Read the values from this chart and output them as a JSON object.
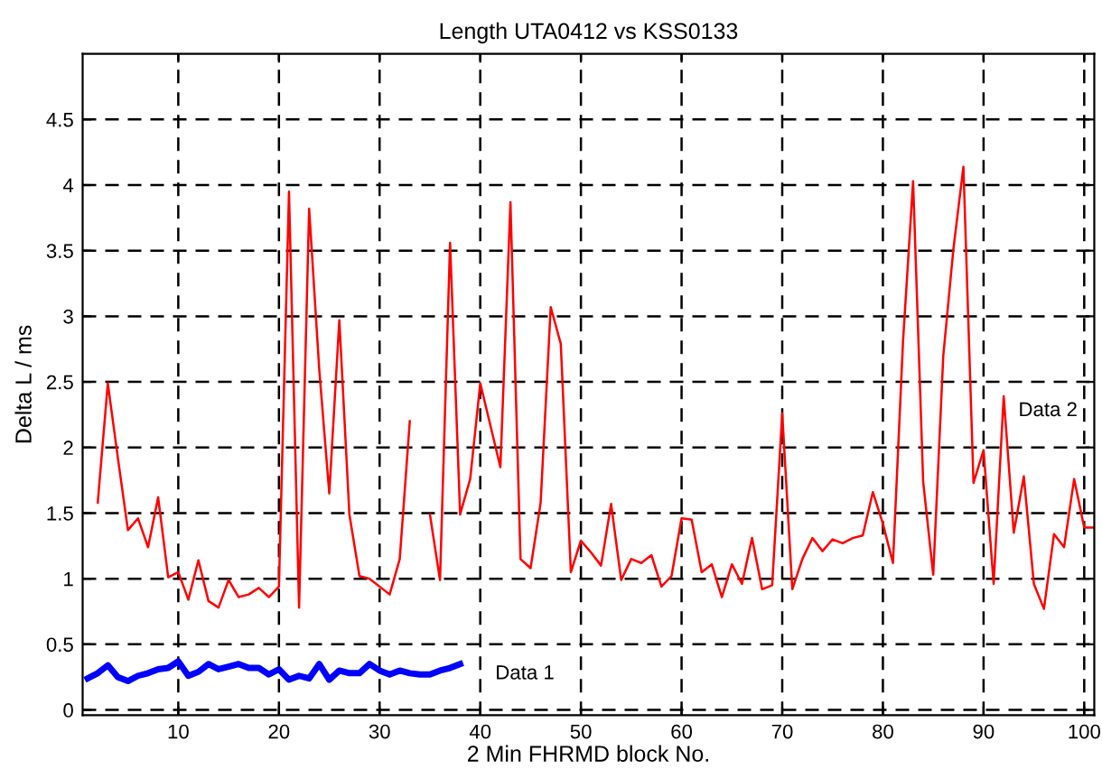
{
  "chart_data": {
    "type": "line",
    "title": "Length UTA0412 vs KSS0133",
    "xlabel": "2 Min FHRMD block No.",
    "ylabel": "Delta L / ms",
    "series": [
      {
        "name": "Data 1",
        "color": "#0000ff",
        "x": [
          1,
          2,
          3,
          4,
          5,
          6,
          7,
          8,
          9,
          10,
          11,
          12,
          13,
          14,
          15,
          16,
          17,
          18,
          19,
          20,
          21,
          22,
          23,
          24,
          25,
          26,
          27,
          28,
          29,
          30,
          31,
          32,
          33,
          34,
          35,
          36,
          37,
          38
        ],
        "values": [
          0.24,
          0.28,
          0.34,
          0.25,
          0.22,
          0.26,
          0.28,
          0.31,
          0.32,
          0.37,
          0.26,
          0.29,
          0.35,
          0.31,
          0.33,
          0.35,
          0.32,
          0.32,
          0.27,
          0.31,
          0.23,
          0.26,
          0.24,
          0.35,
          0.23,
          0.3,
          0.28,
          0.28,
          0.35,
          0.3,
          0.27,
          0.3,
          0.28,
          0.27,
          0.27,
          0.3,
          0.32,
          0.35
        ]
      },
      {
        "name": "Data 2",
        "color": "#ff0000",
        "x": [
          2,
          3,
          4,
          5,
          6,
          7,
          8,
          9,
          10,
          11,
          12,
          13,
          14,
          15,
          16,
          17,
          18,
          19,
          20,
          21,
          22,
          23,
          24,
          25,
          26,
          27,
          28,
          29,
          30,
          31,
          32,
          33,
          34,
          35,
          36,
          37,
          38,
          39,
          40,
          41,
          42,
          43,
          44,
          45,
          46,
          47,
          48,
          49,
          50,
          51,
          52,
          53,
          54,
          55,
          56,
          57,
          58,
          59,
          60,
          61,
          62,
          63,
          64,
          65,
          66,
          67,
          68,
          69,
          70,
          71,
          72,
          73,
          74,
          75,
          76,
          77,
          78,
          79,
          80,
          81,
          82,
          83,
          84,
          85,
          86,
          87,
          88,
          89,
          90,
          91,
          92,
          93,
          94,
          95,
          96,
          97,
          98,
          99,
          100,
          101
        ],
        "values": [
          1.58,
          2.49,
          1.92,
          1.37,
          1.46,
          1.24,
          1.62,
          1.01,
          1.05,
          0.84,
          1.14,
          0.83,
          0.78,
          0.99,
          0.86,
          0.88,
          0.93,
          0.86,
          0.94,
          3.95,
          0.78,
          3.82,
          2.6,
          1.65,
          2.97,
          1.49,
          1.02,
          1.0,
          0.94,
          0.88,
          1.15,
          2.2,
          null,
          1.49,
          0.99,
          3.56,
          1.49,
          1.76,
          2.49,
          2.17,
          1.85,
          3.87,
          1.15,
          1.08,
          1.58,
          3.07,
          2.79,
          1.05,
          1.29,
          1.2,
          1.1,
          1.57,
          0.99,
          1.15,
          1.12,
          1.18,
          0.94,
          1.02,
          1.46,
          1.45,
          1.05,
          1.11,
          0.86,
          1.11,
          0.96,
          1.31,
          0.92,
          0.95,
          2.26,
          0.92,
          1.15,
          1.31,
          1.21,
          1.3,
          1.27,
          1.31,
          1.33,
          1.66,
          1.42,
          1.12,
          2.81,
          4.03,
          1.74,
          1.03,
          2.7,
          3.51,
          4.14,
          1.73,
          1.98,
          0.96,
          2.39,
          1.35,
          1.78,
          0.96,
          0.77,
          1.34,
          1.24,
          1.76,
          1.39,
          1.39
        ]
      }
    ],
    "xlim": [
      0.5,
      101
    ],
    "ylim": [
      -0.04,
      5
    ],
    "xticks": [
      10,
      20,
      30,
      40,
      50,
      60,
      70,
      80,
      90,
      100
    ],
    "yticks": [
      0,
      0.5,
      1,
      1.5,
      2,
      2.5,
      3,
      3.5,
      4,
      4.5
    ],
    "grid": true,
    "legend": false,
    "marker": "none",
    "line_style": "solid"
  }
}
